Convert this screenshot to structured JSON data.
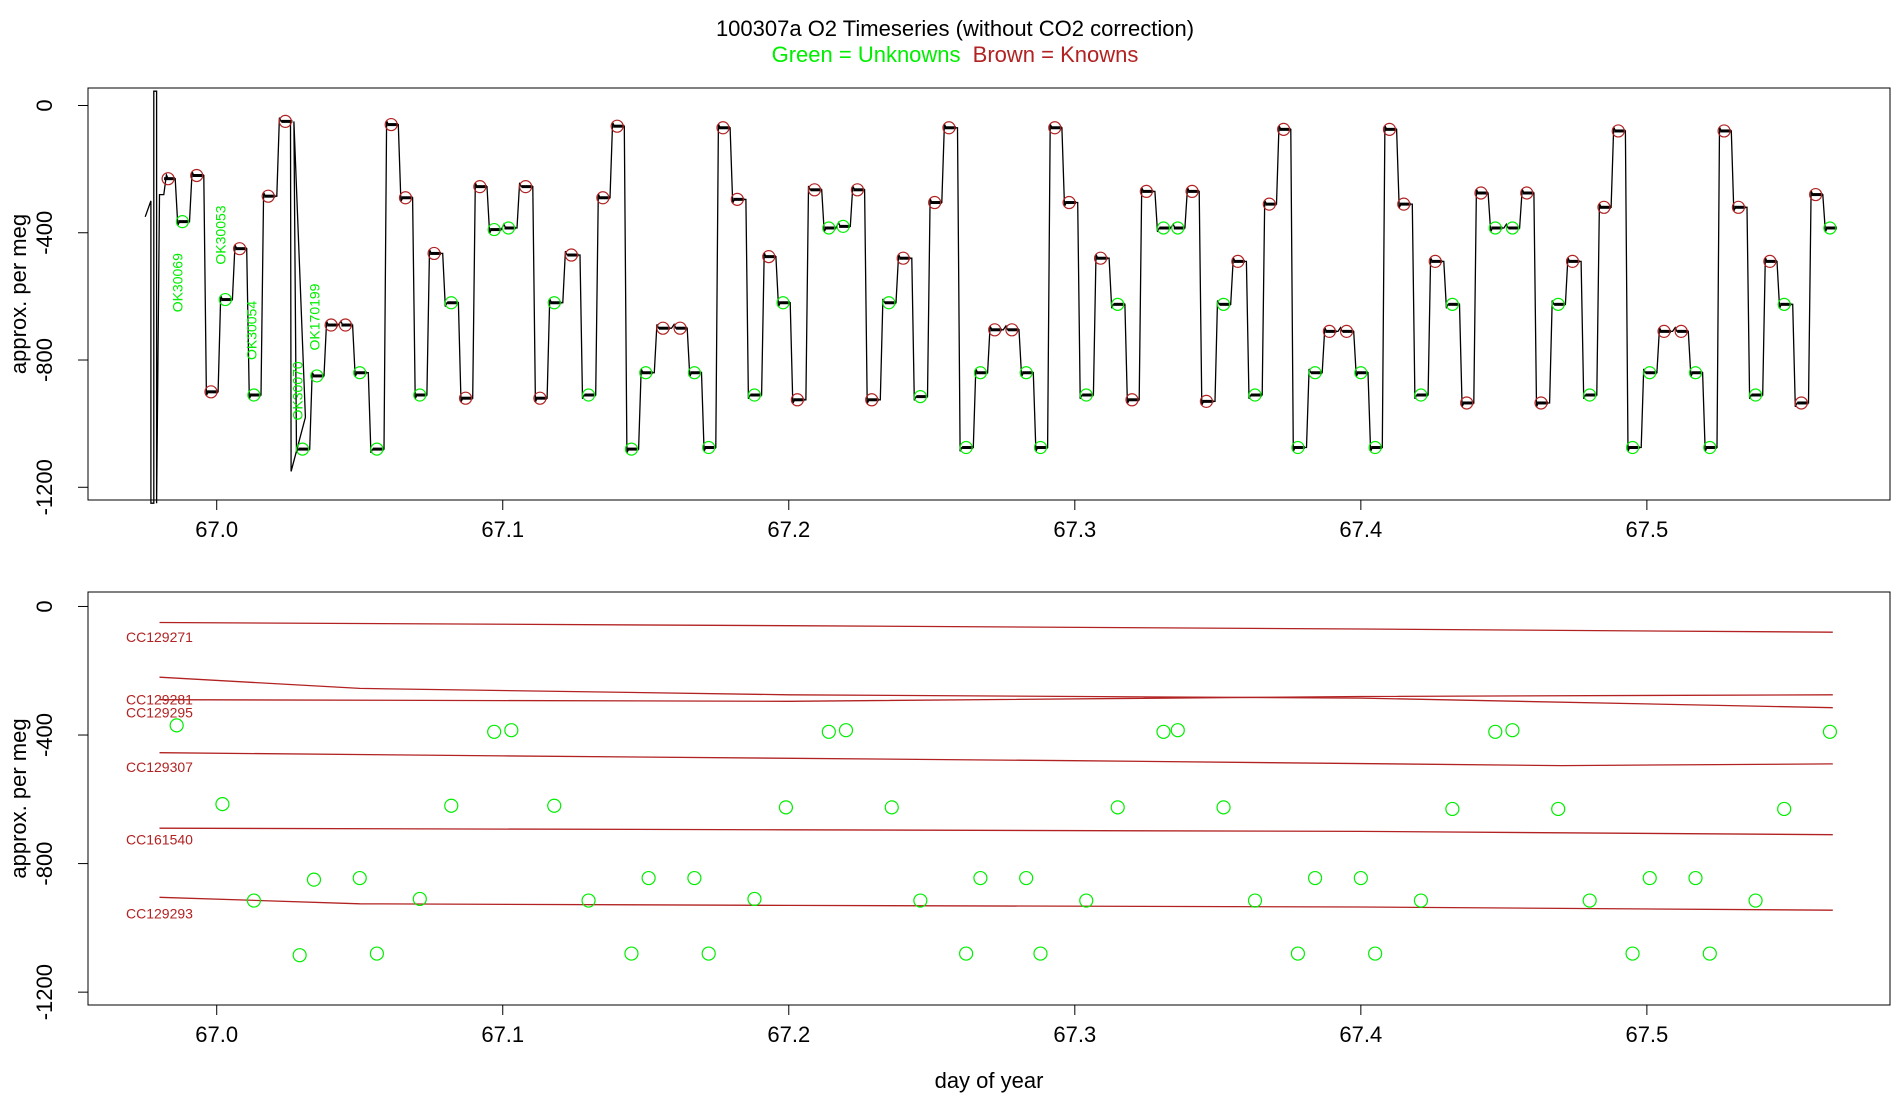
{
  "figure": {
    "title": "100307a   O2 Timeseries (without CO2 correction)",
    "subtitle_unknowns": "Green = Unknowns",
    "subtitle_knowns": "Brown = Knowns",
    "colors": {
      "unknown": "#00ee00",
      "known": "#b22222",
      "trace": "#000000",
      "axis": "#000000"
    }
  },
  "chart_data": [
    {
      "type": "line",
      "panel": "top",
      "ylabel": "approx. per meg",
      "xlabel": "",
      "xlim": [
        66.955,
        67.585
      ],
      "ylim": [
        -1240,
        55
      ],
      "x_ticks": [
        67.0,
        67.1,
        67.2,
        67.3,
        67.4,
        67.5
      ],
      "x_tick_labels": [
        "67.0",
        "67.1",
        "67.2",
        "67.3",
        "67.4",
        "67.5"
      ],
      "y_ticks": [
        0,
        -400,
        -800,
        -1200
      ],
      "y_tick_labels": [
        "0",
        "-400",
        "-800",
        "-1200"
      ],
      "trace_start": [
        66.975,
        -350
      ],
      "spike": [
        [
          66.977,
          -300
        ],
        [
          66.977,
          -1250
        ],
        [
          66.978,
          -1250
        ],
        [
          66.978,
          45
        ],
        [
          66.979,
          45
        ],
        [
          66.979,
          -1250
        ],
        [
          66.98,
          -280
        ]
      ],
      "trace_dip": [
        [
          67.026,
          -1150
        ],
        [
          67.031,
          -980
        ]
      ],
      "trace_end": [
        67.566,
        -385
      ],
      "points": [
        {
          "x": 66.983,
          "y": -230,
          "k": "K"
        },
        {
          "x": 66.988,
          "y": -365,
          "k": "U"
        },
        {
          "x": 66.993,
          "y": -220,
          "k": "K"
        },
        {
          "x": 66.998,
          "y": -900,
          "k": "K"
        },
        {
          "x": 67.003,
          "y": -610,
          "k": "U"
        },
        {
          "x": 67.008,
          "y": -450,
          "k": "K"
        },
        {
          "x": 67.013,
          "y": -910,
          "k": "U"
        },
        {
          "x": 67.018,
          "y": -285,
          "k": "K"
        },
        {
          "x": 67.024,
          "y": -50,
          "k": "K"
        },
        {
          "x": 67.03,
          "y": -1080,
          "k": "U"
        },
        {
          "x": 67.035,
          "y": -850,
          "k": "U"
        },
        {
          "x": 67.04,
          "y": -690,
          "k": "K"
        },
        {
          "x": 67.045,
          "y": -690,
          "k": "K"
        },
        {
          "x": 67.05,
          "y": -840,
          "k": "U"
        },
        {
          "x": 67.056,
          "y": -1080,
          "k": "U"
        },
        {
          "x": 67.061,
          "y": -60,
          "k": "K"
        },
        {
          "x": 67.066,
          "y": -290,
          "k": "K"
        },
        {
          "x": 67.071,
          "y": -910,
          "k": "U"
        },
        {
          "x": 67.076,
          "y": -465,
          "k": "K"
        },
        {
          "x": 67.082,
          "y": -620,
          "k": "U"
        },
        {
          "x": 67.087,
          "y": -920,
          "k": "K"
        },
        {
          "x": 67.092,
          "y": -255,
          "k": "K"
        },
        {
          "x": 67.097,
          "y": -390,
          "k": "U"
        },
        {
          "x": 67.102,
          "y": -385,
          "k": "U"
        },
        {
          "x": 67.108,
          "y": -255,
          "k": "K"
        },
        {
          "x": 67.113,
          "y": -920,
          "k": "K"
        },
        {
          "x": 67.118,
          "y": -620,
          "k": "U"
        },
        {
          "x": 67.124,
          "y": -470,
          "k": "K"
        },
        {
          "x": 67.13,
          "y": -910,
          "k": "U"
        },
        {
          "x": 67.135,
          "y": -290,
          "k": "K"
        },
        {
          "x": 67.14,
          "y": -65,
          "k": "K"
        },
        {
          "x": 67.145,
          "y": -1080,
          "k": "U"
        },
        {
          "x": 67.15,
          "y": -840,
          "k": "U"
        },
        {
          "x": 67.156,
          "y": -700,
          "k": "K"
        },
        {
          "x": 67.162,
          "y": -700,
          "k": "K"
        },
        {
          "x": 67.167,
          "y": -840,
          "k": "U"
        },
        {
          "x": 67.172,
          "y": -1075,
          "k": "U"
        },
        {
          "x": 67.177,
          "y": -70,
          "k": "K"
        },
        {
          "x": 67.182,
          "y": -295,
          "k": "K"
        },
        {
          "x": 67.188,
          "y": -910,
          "k": "U"
        },
        {
          "x": 67.193,
          "y": -475,
          "k": "K"
        },
        {
          "x": 67.198,
          "y": -620,
          "k": "U"
        },
        {
          "x": 67.203,
          "y": -925,
          "k": "K"
        },
        {
          "x": 67.209,
          "y": -265,
          "k": "K"
        },
        {
          "x": 67.214,
          "y": -385,
          "k": "U"
        },
        {
          "x": 67.219,
          "y": -380,
          "k": "U"
        },
        {
          "x": 67.224,
          "y": -265,
          "k": "K"
        },
        {
          "x": 67.229,
          "y": -925,
          "k": "K"
        },
        {
          "x": 67.235,
          "y": -620,
          "k": "U"
        },
        {
          "x": 67.24,
          "y": -480,
          "k": "K"
        },
        {
          "x": 67.246,
          "y": -915,
          "k": "U"
        },
        {
          "x": 67.251,
          "y": -305,
          "k": "K"
        },
        {
          "x": 67.256,
          "y": -70,
          "k": "K"
        },
        {
          "x": 67.262,
          "y": -1075,
          "k": "U"
        },
        {
          "x": 67.267,
          "y": -840,
          "k": "U"
        },
        {
          "x": 67.272,
          "y": -705,
          "k": "K"
        },
        {
          "x": 67.278,
          "y": -705,
          "k": "K"
        },
        {
          "x": 67.283,
          "y": -840,
          "k": "U"
        },
        {
          "x": 67.288,
          "y": -1075,
          "k": "U"
        },
        {
          "x": 67.293,
          "y": -70,
          "k": "K"
        },
        {
          "x": 67.298,
          "y": -305,
          "k": "K"
        },
        {
          "x": 67.304,
          "y": -910,
          "k": "U"
        },
        {
          "x": 67.309,
          "y": -480,
          "k": "K"
        },
        {
          "x": 67.315,
          "y": -625,
          "k": "U"
        },
        {
          "x": 67.32,
          "y": -925,
          "k": "K"
        },
        {
          "x": 67.325,
          "y": -270,
          "k": "K"
        },
        {
          "x": 67.331,
          "y": -385,
          "k": "U"
        },
        {
          "x": 67.336,
          "y": -385,
          "k": "U"
        },
        {
          "x": 67.341,
          "y": -270,
          "k": "K"
        },
        {
          "x": 67.346,
          "y": -930,
          "k": "K"
        },
        {
          "x": 67.352,
          "y": -625,
          "k": "U"
        },
        {
          "x": 67.357,
          "y": -490,
          "k": "K"
        },
        {
          "x": 67.363,
          "y": -910,
          "k": "U"
        },
        {
          "x": 67.368,
          "y": -310,
          "k": "K"
        },
        {
          "x": 67.373,
          "y": -75,
          "k": "K"
        },
        {
          "x": 67.378,
          "y": -1075,
          "k": "U"
        },
        {
          "x": 67.384,
          "y": -840,
          "k": "U"
        },
        {
          "x": 67.389,
          "y": -710,
          "k": "K"
        },
        {
          "x": 67.395,
          "y": -710,
          "k": "K"
        },
        {
          "x": 67.4,
          "y": -840,
          "k": "U"
        },
        {
          "x": 67.405,
          "y": -1075,
          "k": "U"
        },
        {
          "x": 67.41,
          "y": -75,
          "k": "K"
        },
        {
          "x": 67.415,
          "y": -310,
          "k": "K"
        },
        {
          "x": 67.421,
          "y": -910,
          "k": "U"
        },
        {
          "x": 67.426,
          "y": -490,
          "k": "K"
        },
        {
          "x": 67.432,
          "y": -625,
          "k": "U"
        },
        {
          "x": 67.437,
          "y": -935,
          "k": "K"
        },
        {
          "x": 67.442,
          "y": -275,
          "k": "K"
        },
        {
          "x": 67.447,
          "y": -385,
          "k": "U"
        },
        {
          "x": 67.453,
          "y": -385,
          "k": "U"
        },
        {
          "x": 67.458,
          "y": -275,
          "k": "K"
        },
        {
          "x": 67.463,
          "y": -935,
          "k": "K"
        },
        {
          "x": 67.469,
          "y": -625,
          "k": "U"
        },
        {
          "x": 67.474,
          "y": -490,
          "k": "K"
        },
        {
          "x": 67.48,
          "y": -910,
          "k": "U"
        },
        {
          "x": 67.485,
          "y": -320,
          "k": "K"
        },
        {
          "x": 67.49,
          "y": -80,
          "k": "K"
        },
        {
          "x": 67.495,
          "y": -1075,
          "k": "U"
        },
        {
          "x": 67.501,
          "y": -840,
          "k": "U"
        },
        {
          "x": 67.506,
          "y": -710,
          "k": "K"
        },
        {
          "x": 67.512,
          "y": -710,
          "k": "K"
        },
        {
          "x": 67.517,
          "y": -840,
          "k": "U"
        },
        {
          "x": 67.522,
          "y": -1075,
          "k": "U"
        },
        {
          "x": 67.527,
          "y": -80,
          "k": "K"
        },
        {
          "x": 67.532,
          "y": -320,
          "k": "K"
        },
        {
          "x": 67.538,
          "y": -910,
          "k": "U"
        },
        {
          "x": 67.543,
          "y": -490,
          "k": "K"
        },
        {
          "x": 67.548,
          "y": -625,
          "k": "U"
        },
        {
          "x": 67.554,
          "y": -935,
          "k": "K"
        },
        {
          "x": 67.559,
          "y": -280,
          "k": "K"
        },
        {
          "x": 67.564,
          "y": -385,
          "k": "U"
        }
      ],
      "annotations": [
        {
          "text": "OK30069",
          "x": 66.988,
          "y": -650
        },
        {
          "text": "OK30053",
          "x": 67.003,
          "y": -500
        },
        {
          "text": "OK30054",
          "x": 67.014,
          "y": -800
        },
        {
          "text": "OK30070",
          "x": 67.03,
          "y": -990
        },
        {
          "text": "OK170199",
          "x": 67.036,
          "y": -770
        }
      ]
    },
    {
      "type": "scatter",
      "panel": "bottom",
      "ylabel": "approx. per meg",
      "xlabel": "day of year",
      "xlim": [
        66.955,
        67.585
      ],
      "ylim": [
        -1240,
        45
      ],
      "x_ticks": [
        67.0,
        67.1,
        67.2,
        67.3,
        67.4,
        67.5
      ],
      "x_tick_labels": [
        "67.0",
        "67.1",
        "67.2",
        "67.3",
        "67.4",
        "67.5"
      ],
      "y_ticks": [
        0,
        -400,
        -800,
        -1200
      ],
      "y_tick_labels": [
        "0",
        "-400",
        "-800",
        "-1200"
      ],
      "knowns": [
        {
          "name": "CC129271",
          "label_y": -95,
          "x": [
            66.98,
            67.2,
            67.4,
            67.565
          ],
          "values": [
            -50,
            -60,
            -70,
            -80
          ]
        },
        {
          "name": "CC129281",
          "label_y": -290,
          "x": [
            66.98,
            67.05,
            67.2,
            67.4,
            67.565
          ],
          "values": [
            -220,
            -255,
            -275,
            -285,
            -315
          ]
        },
        {
          "name": "CC129295",
          "label_y": -330,
          "x": [
            66.98,
            67.2,
            67.4,
            67.565
          ],
          "values": [
            -290,
            -295,
            -280,
            -275
          ]
        },
        {
          "name": "CC129307",
          "label_y": -500,
          "x": [
            66.98,
            67.1,
            67.3,
            67.47,
            67.565
          ],
          "values": [
            -455,
            -465,
            -480,
            -495,
            -490
          ]
        },
        {
          "name": "CC161540",
          "label_y": -725,
          "x": [
            66.98,
            67.2,
            67.4,
            67.565
          ],
          "values": [
            -690,
            -695,
            -700,
            -710
          ]
        },
        {
          "name": "CC129293",
          "label_y": -955,
          "x": [
            66.98,
            67.05,
            67.2,
            67.4,
            67.565
          ],
          "values": [
            -905,
            -925,
            -930,
            -935,
            -945
          ]
        }
      ],
      "unknowns": [
        {
          "x": 66.986,
          "y": -370
        },
        {
          "x": 67.002,
          "y": -615
        },
        {
          "x": 67.013,
          "y": -915
        },
        {
          "x": 67.029,
          "y": -1085
        },
        {
          "x": 67.034,
          "y": -850
        },
        {
          "x": 67.05,
          "y": -845
        },
        {
          "x": 67.056,
          "y": -1080
        },
        {
          "x": 67.071,
          "y": -910
        },
        {
          "x": 67.082,
          "y": -620
        },
        {
          "x": 67.097,
          "y": -390
        },
        {
          "x": 67.103,
          "y": -385
        },
        {
          "x": 67.118,
          "y": -620
        },
        {
          "x": 67.13,
          "y": -915
        },
        {
          "x": 67.145,
          "y": -1080
        },
        {
          "x": 67.151,
          "y": -845
        },
        {
          "x": 67.167,
          "y": -845
        },
        {
          "x": 67.172,
          "y": -1080
        },
        {
          "x": 67.188,
          "y": -910
        },
        {
          "x": 67.199,
          "y": -625
        },
        {
          "x": 67.214,
          "y": -390
        },
        {
          "x": 67.22,
          "y": -385
        },
        {
          "x": 67.236,
          "y": -625
        },
        {
          "x": 67.246,
          "y": -915
        },
        {
          "x": 67.262,
          "y": -1080
        },
        {
          "x": 67.267,
          "y": -845
        },
        {
          "x": 67.283,
          "y": -845
        },
        {
          "x": 67.288,
          "y": -1080
        },
        {
          "x": 67.304,
          "y": -915
        },
        {
          "x": 67.315,
          "y": -625
        },
        {
          "x": 67.331,
          "y": -390
        },
        {
          "x": 67.336,
          "y": -385
        },
        {
          "x": 67.352,
          "y": -625
        },
        {
          "x": 67.363,
          "y": -915
        },
        {
          "x": 67.378,
          "y": -1080
        },
        {
          "x": 67.384,
          "y": -845
        },
        {
          "x": 67.4,
          "y": -845
        },
        {
          "x": 67.405,
          "y": -1080
        },
        {
          "x": 67.421,
          "y": -915
        },
        {
          "x": 67.432,
          "y": -630
        },
        {
          "x": 67.447,
          "y": -390
        },
        {
          "x": 67.453,
          "y": -385
        },
        {
          "x": 67.469,
          "y": -630
        },
        {
          "x": 67.48,
          "y": -915
        },
        {
          "x": 67.495,
          "y": -1080
        },
        {
          "x": 67.501,
          "y": -845
        },
        {
          "x": 67.517,
          "y": -845
        },
        {
          "x": 67.522,
          "y": -1080
        },
        {
          "x": 67.538,
          "y": -915
        },
        {
          "x": 67.548,
          "y": -630
        },
        {
          "x": 67.564,
          "y": -390
        }
      ]
    }
  ]
}
